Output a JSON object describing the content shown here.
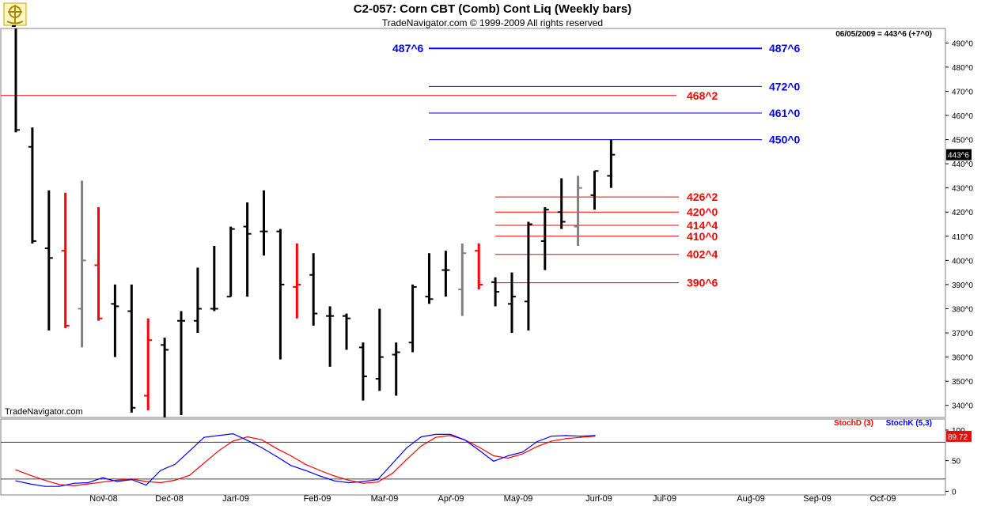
{
  "header": {
    "title": "C2-057:  Corn CBT (Comb) Cont Liq  (Weekly bars)",
    "subtitle": "TradeNavigator.com © 1999-2009 All rights reserved"
  },
  "chart_data": [
    {
      "type": "ohlc",
      "title": "C2-057:  Corn CBT (Comb) Cont Liq  (Weekly bars)",
      "last_info": "06/05/2009 = 443^6 (+7^0)",
      "watermark": "TradeNavigator.com",
      "last_price_label": "443^6",
      "last_price": 443.75,
      "ylim": [
        335,
        496
      ],
      "y_ticks": [
        340,
        350,
        360,
        370,
        380,
        390,
        400,
        410,
        420,
        430,
        440,
        450,
        460,
        470,
        480,
        490
      ],
      "y_tick_labels": [
        "340^0",
        "350^0",
        "360^0",
        "370^0",
        "380^0",
        "390^0",
        "400^0",
        "410^0",
        "420^0",
        "430^0",
        "440^0",
        "450^0",
        "460^0",
        "470^0",
        "480^0",
        "490^0"
      ],
      "x_labels": [
        "Nov-08",
        "Dec-08",
        "Jan-09",
        "Feb-09",
        "Mar-09",
        "Apr-09",
        "May-09",
        "Jun-09",
        "Jul-09",
        "Aug-09",
        "Sep-09",
        "Oct-09"
      ],
      "bars": [
        {
          "o": 497,
          "h": 497,
          "l": 453,
          "c": 454,
          "color": "#000000"
        },
        {
          "o": 447,
          "h": 455,
          "l": 407,
          "c": 408,
          "color": "#000000"
        },
        {
          "o": 405,
          "h": 429,
          "l": 371,
          "c": 401,
          "color": "#000000"
        },
        {
          "o": 404,
          "h": 428,
          "l": 372,
          "c": 373,
          "color": "#ff0000"
        },
        {
          "o": 380,
          "h": 433,
          "l": 364,
          "c": 400,
          "color": "#808080"
        },
        {
          "o": 398,
          "h": 422,
          "l": 375,
          "c": 376,
          "color": "#ff0000"
        },
        {
          "o": 382,
          "h": 390,
          "l": 360,
          "c": 381,
          "color": "#000000"
        },
        {
          "o": 379,
          "h": 390,
          "l": 337,
          "c": 339,
          "color": "#000000"
        },
        {
          "o": 344,
          "h": 376,
          "l": 338,
          "c": 367,
          "color": "#ff0000"
        },
        {
          "o": 365,
          "h": 368,
          "l": 335,
          "c": 363,
          "color": "#000000"
        },
        {
          "o": 375,
          "h": 379,
          "l": 336,
          "c": 375,
          "color": "#000000"
        },
        {
          "o": 375,
          "h": 397,
          "l": 370,
          "c": 380,
          "color": "#000000"
        },
        {
          "o": 380,
          "h": 406,
          "l": 379,
          "c": 380,
          "color": "#000000"
        },
        {
          "o": 385,
          "h": 414,
          "l": 385,
          "c": 413,
          "color": "#000000"
        },
        {
          "o": 414,
          "h": 424,
          "l": 385,
          "c": 411,
          "color": "#000000"
        },
        {
          "o": 412,
          "h": 429,
          "l": 402,
          "c": 412,
          "color": "#000000"
        },
        {
          "o": 412,
          "h": 413,
          "l": 359,
          "c": 390,
          "color": "#000000"
        },
        {
          "o": 389,
          "h": 407,
          "l": 376,
          "c": 390,
          "color": "#ff0000"
        },
        {
          "o": 394,
          "h": 403,
          "l": 373,
          "c": 378,
          "color": "#000000"
        },
        {
          "o": 377,
          "h": 381,
          "l": 356,
          "c": 377,
          "color": "#000000"
        },
        {
          "o": 377,
          "h": 378,
          "l": 363,
          "c": 376,
          "color": "#000000"
        },
        {
          "o": 364,
          "h": 366,
          "l": 342,
          "c": 352,
          "color": "#000000"
        },
        {
          "o": 351,
          "h": 380,
          "l": 346,
          "c": 360,
          "color": "#000000"
        },
        {
          "o": 361,
          "h": 366,
          "l": 344,
          "c": 362,
          "color": "#000000"
        },
        {
          "o": 366,
          "h": 390,
          "l": 362,
          "c": 389,
          "color": "#000000"
        },
        {
          "o": 385,
          "h": 403,
          "l": 382,
          "c": 384,
          "color": "#000000"
        },
        {
          "o": 396,
          "h": 404,
          "l": 385,
          "c": 396,
          "color": "#000000"
        },
        {
          "o": 388,
          "h": 407,
          "l": 377,
          "c": 403,
          "color": "#808080"
        },
        {
          "o": 404,
          "h": 407,
          "l": 388,
          "c": 390,
          "color": "#ff0000"
        },
        {
          "o": 391,
          "h": 393,
          "l": 381,
          "c": 387,
          "color": "#000000"
        },
        {
          "o": 382,
          "h": 395,
          "l": 370,
          "c": 385,
          "color": "#000000"
        },
        {
          "o": 383,
          "h": 416,
          "l": 371,
          "c": 415,
          "color": "#000000"
        },
        {
          "o": 408,
          "h": 422,
          "l": 396,
          "c": 421,
          "color": "#000000"
        },
        {
          "o": 420,
          "h": 434,
          "l": 413,
          "c": 416,
          "color": "#000000"
        },
        {
          "o": 414,
          "h": 435,
          "l": 406,
          "c": 430,
          "color": "#808080"
        },
        {
          "o": 427,
          "h": 437,
          "l": 421,
          "c": 437,
          "color": "#000000"
        },
        {
          "o": 435,
          "h": 450,
          "l": 430,
          "c": 443.75,
          "color": "#000000"
        }
      ],
      "levels": [
        {
          "label": "487^6",
          "value": 487.75,
          "color": "#0000ff",
          "label_left": true,
          "line_bold": true
        },
        {
          "label": "472^0",
          "value": 472,
          "color": "#0000ff"
        },
        {
          "label": "468^2",
          "value": 468.25,
          "color": "#ff0000",
          "full_width": true
        },
        {
          "label": "461^0",
          "value": 461,
          "color": "#0000ff"
        },
        {
          "label": "450^0",
          "value": 450,
          "color": "#0000ff"
        },
        {
          "label": "426^2",
          "value": 426.25,
          "color": "#ff0000"
        },
        {
          "label": "420^0",
          "value": 420,
          "color": "#ff0000"
        },
        {
          "label": "414^4",
          "value": 414.5,
          "color": "#ff0000"
        },
        {
          "label": "410^0",
          "value": 410,
          "color": "#ff0000"
        },
        {
          "label": "402^4",
          "value": 402.5,
          "color": "#ff0000"
        },
        {
          "label": "390^6",
          "value": 390.75,
          "color": "#ff0000"
        }
      ]
    },
    {
      "type": "line",
      "title": "",
      "ylim": [
        -6,
        118
      ],
      "y_ticks": [
        0,
        50,
        100
      ],
      "y_tick_labels": [
        "0",
        "50",
        "100"
      ],
      "ref_lines": [
        20,
        80
      ],
      "last_value_label": "89.72",
      "series": [
        {
          "name": "StochD (3)",
          "color": "#ff0000",
          "values": [
            35,
            26,
            18,
            11,
            9,
            12,
            15,
            18,
            20,
            16,
            14,
            18,
            26,
            46,
            66,
            82,
            89,
            84,
            70,
            58,
            44,
            34,
            25,
            18,
            13,
            15,
            29,
            52,
            74,
            88,
            91,
            84,
            72,
            58,
            54,
            61,
            73,
            82,
            86,
            88,
            90
          ]
        },
        {
          "name": "StochK (5,3)",
          "color": "#0000ff",
          "values": [
            17,
            12,
            8,
            8,
            13,
            14,
            22,
            16,
            19,
            10,
            34,
            44,
            66,
            88,
            91,
            94,
            83,
            71,
            57,
            42,
            34,
            25,
            17,
            14,
            16,
            19,
            45,
            71,
            89,
            93,
            93,
            84,
            67,
            49,
            58,
            64,
            81,
            90,
            91,
            90,
            91
          ]
        }
      ]
    }
  ]
}
